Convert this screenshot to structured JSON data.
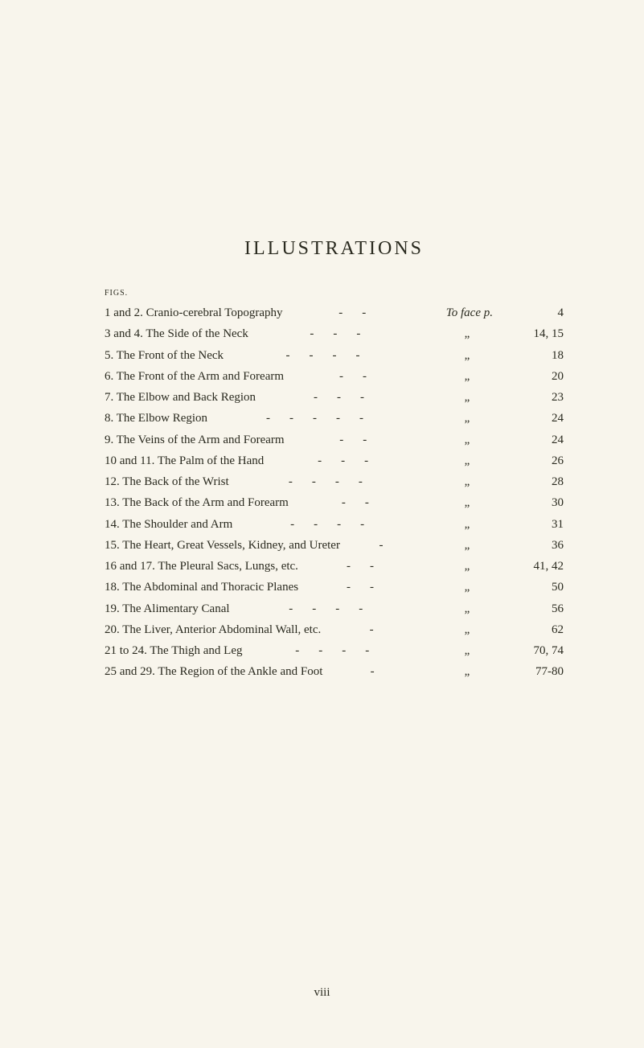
{
  "title": "ILLUSTRATIONS",
  "figsLabel": "figs.",
  "toFaceLabel": "To face p.",
  "ditto": "„",
  "footer": "viii",
  "entries": [
    {
      "label": "1 and 2. Cranio-cerebral Topography",
      "dashes": "--",
      "page": "4",
      "firstRow": true
    },
    {
      "label": "3 and 4. The Side of the Neck",
      "dashes": "---",
      "page": "14, 15"
    },
    {
      "label": "5. The Front of the Neck",
      "dashes": "----",
      "page": "18"
    },
    {
      "label": "6. The Front of the Arm and Forearm",
      "dashes": "--",
      "page": "20"
    },
    {
      "label": "7. The Elbow and Back Region",
      "dashes": "---",
      "page": "23"
    },
    {
      "label": "8. The Elbow Region",
      "dashes": "-----",
      "page": "24"
    },
    {
      "label": "9. The Veins of the Arm and Forearm",
      "dashes": "--",
      "page": "24"
    },
    {
      "label": "10 and 11. The Palm of the Hand",
      "dashes": "---",
      "page": "26"
    },
    {
      "label": "12. The Back of the Wrist",
      "dashes": "----",
      "page": "28"
    },
    {
      "label": "13. The Back of the Arm and Forearm",
      "dashes": "--",
      "page": "30"
    },
    {
      "label": "14. The Shoulder and Arm",
      "dashes": "----",
      "page": "31"
    },
    {
      "label": "15. The Heart, Great Vessels, Kidney, and Ureter",
      "dashes": "-",
      "page": "36"
    },
    {
      "label": "16 and 17. The Pleural Sacs, Lungs, etc.",
      "dashes": "--",
      "page": "41, 42"
    },
    {
      "label": "18. The Abdominal and Thoracic Planes",
      "dashes": "--",
      "page": "50"
    },
    {
      "label": "19. The Alimentary Canal",
      "dashes": "----",
      "page": "56"
    },
    {
      "label": "20. The Liver, Anterior Abdominal Wall, etc.",
      "dashes": "-",
      "page": "62"
    },
    {
      "label": "21 to 24. The Thigh and Leg",
      "dashes": "----",
      "page": "70, 74"
    },
    {
      "label": "25 and 29. The Region of the Ankle and Foot",
      "dashes": "-",
      "page": "77-80"
    }
  ]
}
